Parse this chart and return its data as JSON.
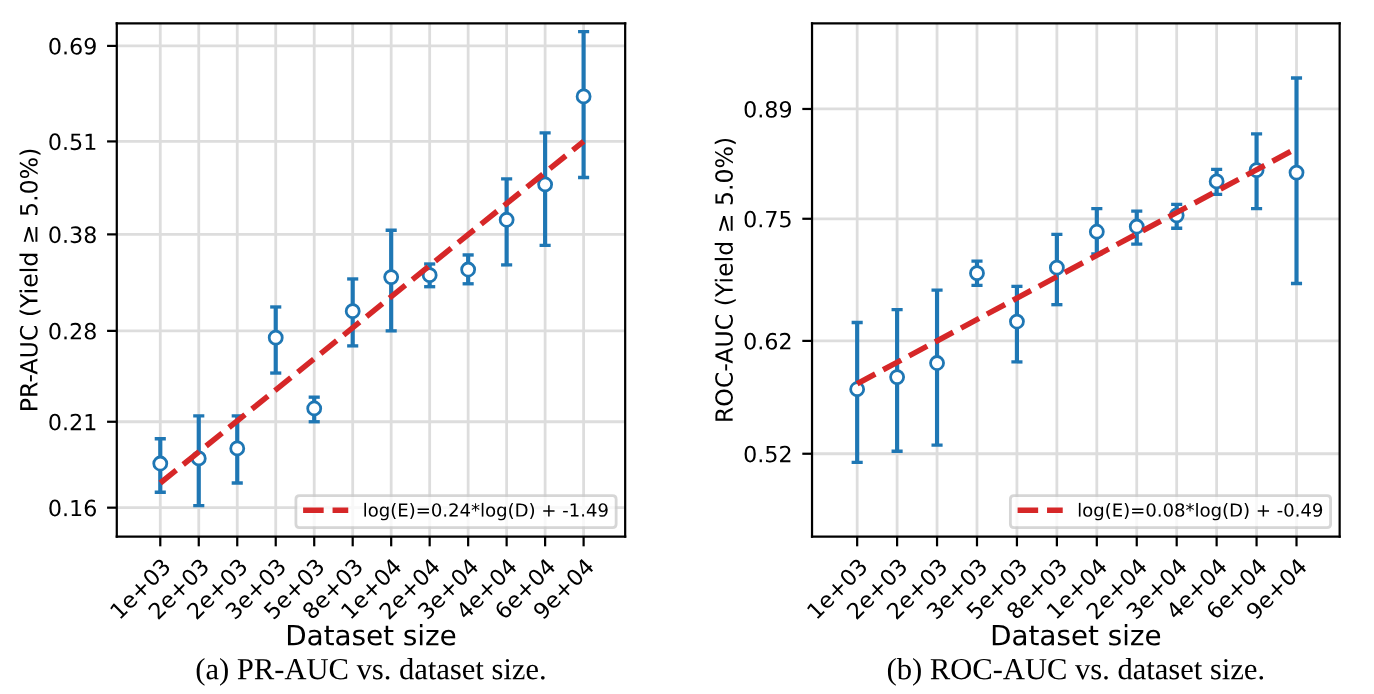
{
  "chart_data": [
    {
      "type": "scatter",
      "xlabel": "Dataset size",
      "ylabel": "PR-AUC (Yield ≥ 5.0%)",
      "categories": [
        "1e+03",
        "2e+03",
        "2e+03",
        "3e+03",
        "5e+03",
        "8e+03",
        "1e+04",
        "2e+04",
        "3e+04",
        "4e+04",
        "6e+04",
        "9e+04"
      ],
      "series": [
        {
          "color": "#1f77b4",
          "marker": "circle",
          "values": [
            0.184,
            0.187,
            0.193,
            0.274,
            0.219,
            0.298,
            0.332,
            0.334,
            0.34,
            0.398,
            0.445,
            0.588
          ],
          "errors": [
            [
              0.168,
              0.199
            ],
            [
              0.161,
              0.214
            ],
            [
              0.173,
              0.214
            ],
            [
              0.245,
              0.302
            ],
            [
              0.21,
              0.227
            ],
            [
              0.267,
              0.33
            ],
            [
              0.28,
              0.385
            ],
            [
              0.322,
              0.346
            ],
            [
              0.325,
              0.356
            ],
            [
              0.345,
              0.453
            ],
            [
              0.367,
              0.524
            ],
            [
              0.455,
              0.722
            ]
          ]
        },
        {
          "type": "line",
          "name": "log(E)=0.24*log(D) + -1.49",
          "color": "#d62728",
          "line_style": "dashed",
          "x": [
            "1e+03",
            "9e+04"
          ],
          "values": [
            0.173,
            0.51
          ]
        }
      ],
      "log": "y",
      "ylim": [
        0.146,
        0.741
      ],
      "yticks": [
        0.16,
        0.21,
        0.28,
        0.38,
        0.51,
        0.69
      ],
      "grid": true,
      "legend": "bottom right",
      "annotations": [
        "(a) PR-AUC vs. dataset size."
      ]
    },
    {
      "type": "scatter",
      "xlabel": "Dataset size",
      "ylabel": "ROC-AUC (Yield ≥ 5.0%)",
      "categories": [
        "1e+03",
        "2e+03",
        "2e+03",
        "3e+03",
        "5e+03",
        "8e+03",
        "1e+04",
        "2e+04",
        "3e+04",
        "4e+04",
        "6e+04",
        "9e+04"
      ],
      "series": [
        {
          "color": "#1f77b4",
          "marker": "circle",
          "values": [
            0.575,
            0.586,
            0.599,
            0.689,
            0.639,
            0.695,
            0.735,
            0.741,
            0.754,
            0.795,
            0.809,
            0.806
          ],
          "errors": [
            [
              0.513,
              0.638
            ],
            [
              0.522,
              0.651
            ],
            [
              0.527,
              0.671
            ],
            [
              0.676,
              0.702
            ],
            [
              0.6,
              0.675
            ],
            [
              0.656,
              0.732
            ],
            [
              0.71,
              0.762
            ],
            [
              0.721,
              0.759
            ],
            [
              0.739,
              0.767
            ],
            [
              0.779,
              0.81
            ],
            [
              0.762,
              0.856
            ],
            [
              0.678,
              0.934
            ]
          ]
        },
        {
          "type": "line",
          "name": "log(E)=0.08*log(D) + -0.49",
          "color": "#d62728",
          "line_style": "dashed",
          "x": [
            "1e+03",
            "9e+04"
          ],
          "values": [
            0.58,
            0.837
          ]
        }
      ],
      "log": "y",
      "ylim": [
        0.457,
        1.017
      ],
      "yticks": [
        0.52,
        0.62,
        0.75,
        0.89
      ],
      "grid": true,
      "legend": "bottom right",
      "annotations": [
        "(b) ROC-AUC vs. dataset size."
      ]
    }
  ]
}
